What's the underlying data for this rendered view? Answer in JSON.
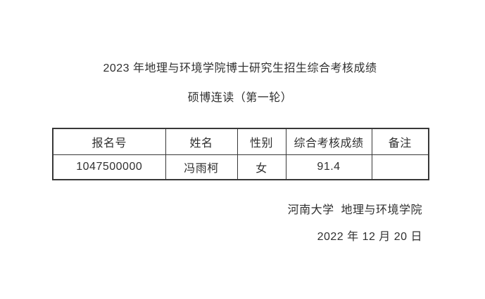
{
  "document": {
    "title": "2023 年地理与环境学院博士研究生招生综合考核成绩",
    "subtitle": "硕博连读（第一轮）"
  },
  "table": {
    "headers": [
      "报名号",
      "姓名",
      "性别",
      "综合考核成绩",
      "备注"
    ],
    "rows": [
      [
        "1047500000",
        "冯雨柯",
        "女",
        "91.4",
        ""
      ]
    ]
  },
  "footer": {
    "organization": "河南大学  地理与环境学院",
    "date": "2022 年 12 月 20 日"
  },
  "colors": {
    "background": "#ffffff",
    "text": "#2f2f2f",
    "table_border": "#383838"
  }
}
